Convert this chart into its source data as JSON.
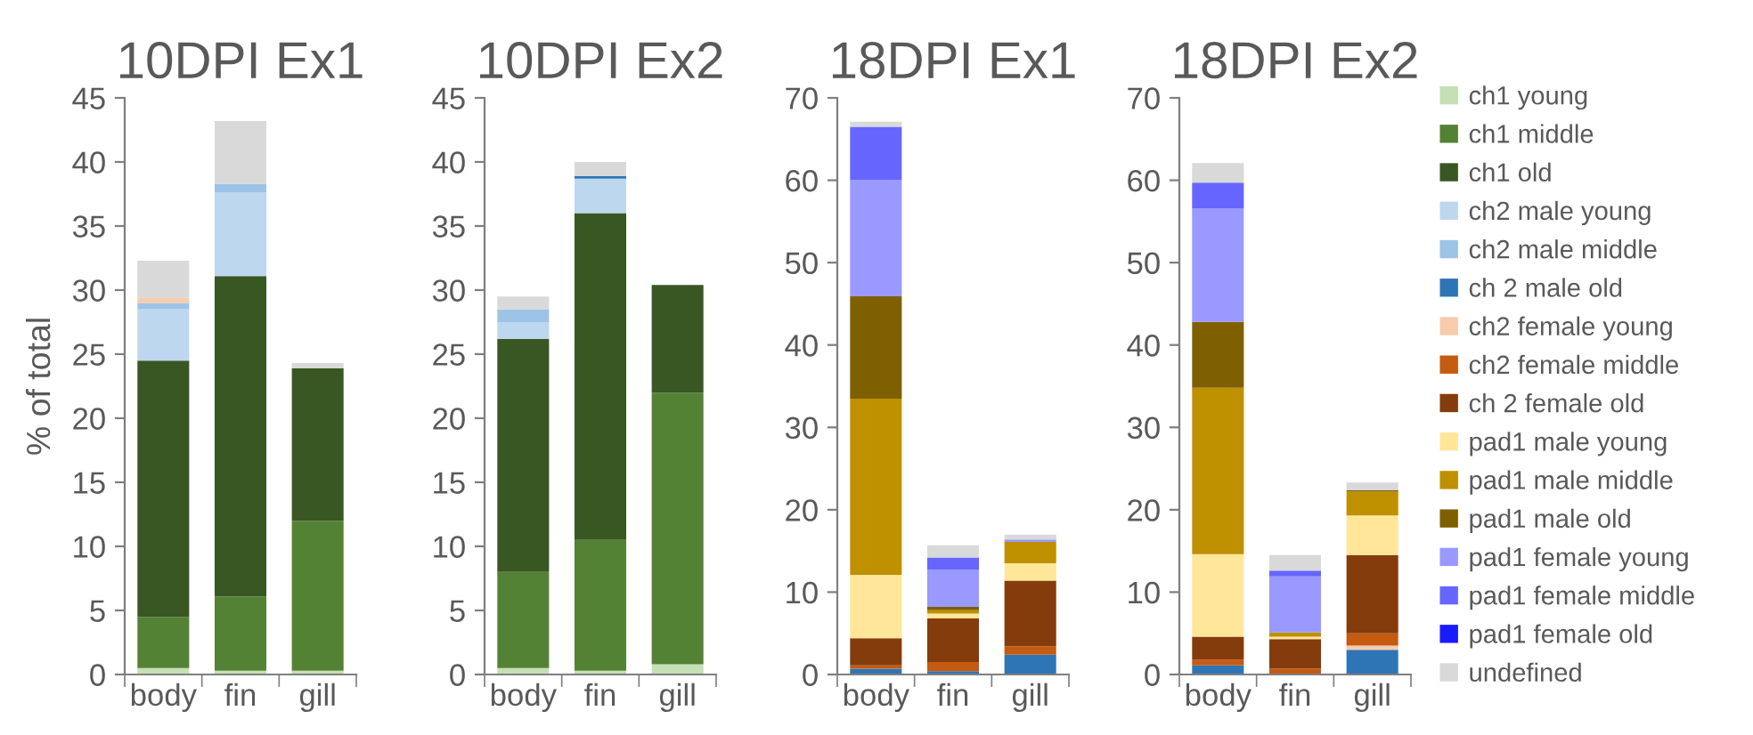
{
  "chart_data": [
    {
      "type": "bar",
      "stacked": true,
      "title": "10DPI Ex1",
      "ylabel": "% of total",
      "categories": [
        "body",
        "fin",
        "gill"
      ],
      "ylim": [
        0,
        45
      ],
      "yticks": [
        0,
        5,
        10,
        15,
        20,
        25,
        30,
        35,
        40,
        45
      ],
      "grid": false,
      "series": [
        {
          "color": "#c5e0b4",
          "values": [
            0.5,
            0.3,
            0.3
          ]
        },
        {
          "color": "#548235",
          "values": [
            4.0,
            5.8,
            11.7
          ]
        },
        {
          "color": "#385723",
          "values": [
            20.0,
            25.0,
            11.9
          ]
        },
        {
          "color": "#bdd7ee",
          "values": [
            4.0,
            6.5,
            null
          ]
        },
        {
          "color": "#9dc3e6",
          "values": [
            0.5,
            0.7,
            null
          ]
        },
        {
          "color": "#2e75b6",
          "values": [
            null,
            null,
            null
          ]
        },
        {
          "color": "#f8cbad",
          "values": [
            0.4,
            null,
            null
          ]
        },
        {
          "color": "#c55a11",
          "values": [
            null,
            null,
            null
          ]
        },
        {
          "color": "#843c0c",
          "values": [
            null,
            null,
            null
          ]
        },
        {
          "color": "#ffe699",
          "values": [
            null,
            null,
            null
          ]
        },
        {
          "color": "#bf9000",
          "values": [
            null,
            null,
            null
          ]
        },
        {
          "color": "#7f6000",
          "values": [
            null,
            null,
            null
          ]
        },
        {
          "color": "#9999ff",
          "values": [
            null,
            null,
            null
          ]
        },
        {
          "color": "#6666ff",
          "values": [
            null,
            null,
            null
          ]
        },
        {
          "color": "#1a1aff",
          "values": [
            null,
            null,
            null
          ]
        },
        {
          "color": "#d9d9d9",
          "values": [
            2.9,
            4.9,
            0.4
          ]
        }
      ]
    },
    {
      "type": "bar",
      "stacked": true,
      "title": "10DPI Ex2",
      "categories": [
        "body",
        "fin",
        "gill"
      ],
      "ylim": [
        0,
        45
      ],
      "yticks": [
        0,
        5,
        10,
        15,
        20,
        25,
        30,
        35,
        40,
        45
      ],
      "grid": false,
      "series": [
        {
          "color": "#c5e0b4",
          "values": [
            0.5,
            0.3,
            0.8
          ]
        },
        {
          "color": "#548235",
          "values": [
            7.5,
            10.2,
            21.2
          ]
        },
        {
          "color": "#385723",
          "values": [
            18.2,
            25.5,
            8.4
          ]
        },
        {
          "color": "#bdd7ee",
          "values": [
            1.3,
            2.7,
            null
          ]
        },
        {
          "color": "#9dc3e6",
          "values": [
            1.0,
            null,
            null
          ]
        },
        {
          "color": "#2e75b6",
          "values": [
            null,
            0.2,
            null
          ]
        },
        {
          "color": "#f8cbad",
          "values": [
            null,
            null,
            null
          ]
        },
        {
          "color": "#c55a11",
          "values": [
            null,
            null,
            null
          ]
        },
        {
          "color": "#843c0c",
          "values": [
            null,
            null,
            null
          ]
        },
        {
          "color": "#ffe699",
          "values": [
            null,
            null,
            null
          ]
        },
        {
          "color": "#bf9000",
          "values": [
            null,
            null,
            null
          ]
        },
        {
          "color": "#7f6000",
          "values": [
            null,
            null,
            null
          ]
        },
        {
          "color": "#9999ff",
          "values": [
            null,
            null,
            null
          ]
        },
        {
          "color": "#6666ff",
          "values": [
            null,
            null,
            null
          ]
        },
        {
          "color": "#1a1aff",
          "values": [
            null,
            null,
            null
          ]
        },
        {
          "color": "#d9d9d9",
          "values": [
            1.0,
            1.1,
            null
          ]
        }
      ]
    },
    {
      "type": "bar",
      "stacked": true,
      "title": "18DPI Ex1",
      "categories": [
        "body",
        "fin",
        "gill"
      ],
      "ylim": [
        0,
        70
      ],
      "yticks": [
        0,
        10,
        20,
        30,
        40,
        50,
        60,
        70
      ],
      "grid": false,
      "series": [
        {
          "color": "#c5e0b4",
          "values": [
            null,
            null,
            null
          ]
        },
        {
          "color": "#548235",
          "values": [
            null,
            null,
            null
          ]
        },
        {
          "color": "#385723",
          "values": [
            null,
            null,
            null
          ]
        },
        {
          "color": "#bdd7ee",
          "values": [
            null,
            null,
            null
          ]
        },
        {
          "color": "#9dc3e6",
          "values": [
            null,
            null,
            null
          ]
        },
        {
          "color": "#2e75b6",
          "values": [
            0.7,
            0.4,
            2.4
          ]
        },
        {
          "color": "#f8cbad",
          "values": [
            null,
            null,
            null
          ]
        },
        {
          "color": "#c55a11",
          "values": [
            0.4,
            1.1,
            1.0
          ]
        },
        {
          "color": "#843c0c",
          "values": [
            3.3,
            5.3,
            8.0
          ]
        },
        {
          "color": "#ffe699",
          "values": [
            7.7,
            0.6,
            2.1
          ]
        },
        {
          "color": "#bf9000",
          "values": [
            21.4,
            0.4,
            2.6
          ]
        },
        {
          "color": "#7f6000",
          "values": [
            12.4,
            0.4,
            null
          ]
        },
        {
          "color": "#9999ff",
          "values": [
            14.1,
            4.5,
            0.3
          ]
        },
        {
          "color": "#6666ff",
          "values": [
            6.5,
            1.5,
            null
          ]
        },
        {
          "color": "#1a1aff",
          "values": [
            null,
            null,
            null
          ]
        },
        {
          "color": "#d9d9d9",
          "values": [
            0.6,
            1.5,
            0.6
          ]
        }
      ]
    },
    {
      "type": "bar",
      "stacked": true,
      "title": "18DPI Ex2",
      "categories": [
        "body",
        "fin",
        "gill"
      ],
      "ylim": [
        0,
        70
      ],
      "yticks": [
        0,
        10,
        20,
        30,
        40,
        50,
        60,
        70
      ],
      "grid": false,
      "legend": "right",
      "series": [
        {
          "name": "ch1 young",
          "color": "#c5e0b4",
          "values": [
            null,
            null,
            null
          ]
        },
        {
          "name": "ch1 middle",
          "color": "#548235",
          "values": [
            null,
            null,
            null
          ]
        },
        {
          "name": "ch1 old",
          "color": "#385723",
          "values": [
            null,
            null,
            null
          ]
        },
        {
          "name": "ch2 male young",
          "color": "#bdd7ee",
          "values": [
            null,
            null,
            null
          ]
        },
        {
          "name": "ch2 male middle",
          "color": "#9dc3e6",
          "values": [
            null,
            null,
            null
          ]
        },
        {
          "name": "ch 2 male old",
          "color": "#2e75b6",
          "values": [
            1.1,
            null,
            3.0
          ]
        },
        {
          "name": "ch2 female young",
          "color": "#f8cbad",
          "values": [
            null,
            null,
            0.5
          ]
        },
        {
          "name": "ch2 female middle",
          "color": "#c55a11",
          "values": [
            0.7,
            0.7,
            1.5
          ]
        },
        {
          "name": "ch 2 female old",
          "color": "#843c0c",
          "values": [
            2.8,
            3.6,
            9.5
          ]
        },
        {
          "name": "pad1 male young",
          "color": "#ffe699",
          "values": [
            10.0,
            0.3,
            4.8
          ]
        },
        {
          "name": "pad1 male middle",
          "color": "#bf9000",
          "values": [
            20.2,
            0.5,
            2.9
          ]
        },
        {
          "name": "pad1 male old",
          "color": "#7f6000",
          "values": [
            8.0,
            null,
            0.2
          ]
        },
        {
          "name": "pad1 female young",
          "color": "#9999ff",
          "values": [
            13.8,
            6.8,
            null
          ]
        },
        {
          "name": "pad1 female middle",
          "color": "#6666ff",
          "values": [
            3.1,
            0.7,
            null
          ]
        },
        {
          "name": "pad1 female old",
          "color": "#1a1aff",
          "values": [
            null,
            null,
            null
          ]
        },
        {
          "name": "undefined",
          "color": "#d9d9d9",
          "values": [
            2.4,
            1.9,
            0.9
          ]
        }
      ]
    }
  ]
}
